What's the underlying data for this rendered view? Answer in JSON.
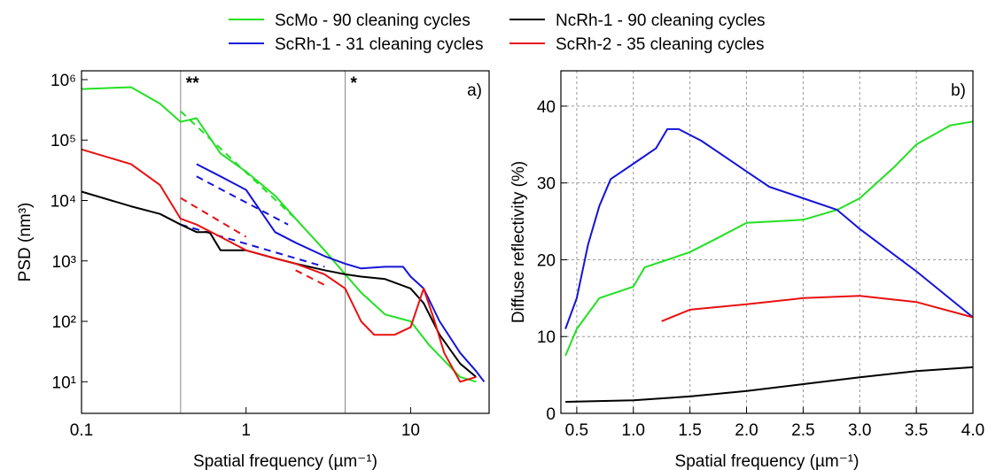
{
  "chart_data": [
    {
      "type": "line",
      "panel_label": "a)",
      "xscale": "log",
      "yscale": "log",
      "grid": false,
      "x_label": "Spatial frequency (µm⁻¹)",
      "y_label": "PSD (nm³)",
      "xlim": [
        0.1,
        30
      ],
      "ylim": [
        3,
        1400000
      ],
      "xticks": [
        0.1,
        1,
        10
      ],
      "yticks": [
        {
          "value": 10,
          "label": "10¹"
        },
        {
          "value": 100,
          "label": "10²"
        },
        {
          "value": 1000,
          "label": "10³"
        },
        {
          "value": 10000,
          "label": "10⁴"
        },
        {
          "value": 100000,
          "label": "10⁵"
        },
        {
          "value": 1000000,
          "label": "10⁶"
        }
      ],
      "reference_lines": [
        {
          "x": 0.4,
          "label": "**"
        },
        {
          "x": 4,
          "label": "*"
        }
      ],
      "series": [
        {
          "name": "ScMo - 90 cleaning cycles",
          "color": "#22e022",
          "x": [
            0.1,
            0.2,
            0.3,
            0.4,
            0.5,
            0.7,
            1,
            1.5,
            2,
            3,
            4,
            5,
            7,
            10,
            13,
            20,
            25
          ],
          "values": [
            700000,
            750000,
            400000,
            200000,
            230000,
            60000,
            30000,
            12000,
            5000,
            1500,
            600,
            300,
            130,
            100,
            40,
            12,
            10
          ]
        },
        {
          "name": "ScRh-1 - 31 cleaning cycles",
          "color": "#1414d8",
          "x": [
            0.5,
            0.7,
            1,
            1.5,
            2,
            3,
            4,
            5,
            7,
            9,
            10,
            12,
            15,
            20,
            25,
            28
          ],
          "values": [
            40000,
            25000,
            15000,
            3000,
            2000,
            1200,
            900,
            750,
            800,
            800,
            550,
            350,
            100,
            30,
            15,
            10
          ]
        },
        {
          "name": "NcRh-1 - 90 cleaning cycles",
          "color": "#000000",
          "x": [
            0.1,
            0.2,
            0.3,
            0.4,
            0.5,
            0.6,
            0.7,
            1,
            1.5,
            2,
            3,
            4,
            5,
            7,
            10,
            12,
            15,
            20,
            25
          ],
          "values": [
            14000,
            8000,
            6000,
            4000,
            3000,
            3000,
            1500,
            1500,
            1100,
            900,
            700,
            600,
            550,
            500,
            350,
            200,
            60,
            20,
            12
          ]
        },
        {
          "name": "ScRh-2 - 35 cleaning cycles",
          "color": "#e81010",
          "x": [
            0.1,
            0.2,
            0.3,
            0.4,
            0.5,
            0.7,
            1,
            1.5,
            2,
            3,
            4,
            5,
            6,
            8,
            10,
            12,
            14,
            16,
            20,
            25
          ],
          "values": [
            70000,
            40000,
            18000,
            5000,
            4000,
            2500,
            1500,
            1100,
            900,
            600,
            350,
            100,
            60,
            60,
            80,
            350,
            100,
            30,
            10,
            12
          ]
        }
      ],
      "fits": [
        {
          "color": "#22e022",
          "x": [
            0.4,
            2
          ],
          "values": [
            300000,
            5000
          ]
        },
        {
          "color": "#1414d8",
          "x": [
            0.5,
            1.8
          ],
          "values": [
            25000,
            4000
          ]
        },
        {
          "color": "#1414d8",
          "x": [
            0.4,
            3
          ],
          "values": [
            4000,
            800
          ]
        },
        {
          "color": "#e81010",
          "x": [
            0.4,
            1
          ],
          "values": [
            11000,
            2500
          ]
        },
        {
          "color": "#e81010",
          "x": [
            2,
            3
          ],
          "values": [
            700,
            400
          ]
        }
      ]
    },
    {
      "type": "line",
      "panel_label": "b)",
      "grid": true,
      "x_label": "Spatial frequency (µm⁻¹)",
      "y_label": "Diffuse reflectivity (%)",
      "xlim": [
        0.36,
        4.0
      ],
      "ylim": [
        0,
        44.6
      ],
      "xticks": [
        0.5,
        {
          "value": 1,
          "label": "1.0"
        },
        1.5,
        {
          "value": 2,
          "label": "2.0"
        },
        2.5,
        {
          "value": 3,
          "label": "3.0"
        },
        3.5,
        {
          "value": 4,
          "label": "4.0"
        }
      ],
      "yticks": [
        0,
        10,
        20,
        30,
        40
      ],
      "series": [
        {
          "color": "#22e022",
          "x": [
            0.4,
            0.5,
            0.7,
            0.9,
            1.0,
            1.1,
            1.3,
            1.5,
            1.7,
            2.0,
            2.5,
            2.8,
            3.0,
            3.3,
            3.5,
            3.8,
            4.0
          ],
          "values": [
            7.5,
            11,
            15,
            16,
            16.5,
            19,
            20,
            21,
            22.5,
            24.8,
            25.2,
            26.5,
            28,
            32,
            35,
            37.5,
            38
          ]
        },
        {
          "color": "#1414d8",
          "x": [
            0.4,
            0.5,
            0.6,
            0.7,
            0.8,
            0.9,
            1.0,
            1.2,
            1.3,
            1.4,
            1.6,
            1.8,
            2.0,
            2.2,
            2.5,
            2.8,
            3.0,
            3.5,
            4.0
          ],
          "values": [
            11,
            15,
            22,
            27,
            30.5,
            31.5,
            32.5,
            34.5,
            37,
            37,
            35.5,
            33.5,
            31.5,
            29.5,
            28,
            26.5,
            24,
            18.5,
            12.5
          ]
        },
        {
          "color": "#000000",
          "x": [
            0.4,
            1.0,
            1.5,
            2.0,
            2.5,
            3.0,
            3.5,
            4.0
          ],
          "values": [
            1.5,
            1.7,
            2.2,
            2.9,
            3.8,
            4.7,
            5.5,
            6
          ]
        },
        {
          "color": "#e81010",
          "x": [
            1.25,
            1.5,
            2.0,
            2.5,
            3.0,
            3.5,
            4.0
          ],
          "values": [
            12,
            13.5,
            14.2,
            15,
            15.3,
            14.5,
            12.5
          ]
        }
      ]
    }
  ]
}
